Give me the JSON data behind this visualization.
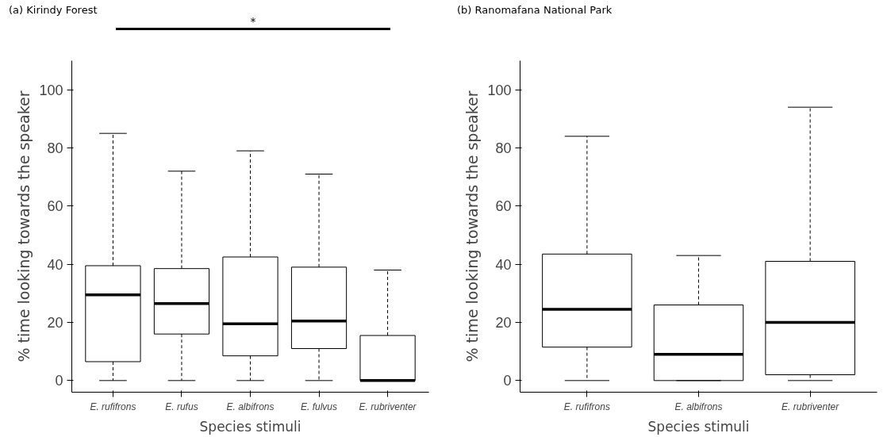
{
  "chart_data": [
    {
      "type": "box",
      "title": "(a) Kirindy Forest",
      "xlabel": "Species stimuli",
      "ylabel": "% time looking towards the speaker",
      "categories": [
        "E. rufifrons",
        "E. rufus",
        "E. albifrons",
        "E. fulvus",
        "E. rubriventer"
      ],
      "boxes": [
        {
          "low": 0,
          "q1": 6.5,
          "median": 29.5,
          "q3": 39.5,
          "high": 85
        },
        {
          "low": 0,
          "q1": 16,
          "median": 26.5,
          "q3": 38.5,
          "high": 72
        },
        {
          "low": 0,
          "q1": 8.5,
          "median": 19.5,
          "q3": 42.5,
          "high": 79
        },
        {
          "low": 0,
          "q1": 11,
          "median": 20.5,
          "q3": 39,
          "high": 71
        },
        {
          "low": 0,
          "q1": 0,
          "median": 0,
          "q3": 15.5,
          "high": 38
        }
      ],
      "ylim": [
        -4,
        110
      ],
      "yticks": [
        0,
        20,
        40,
        60,
        80,
        100
      ],
      "grid": false,
      "annotations": [
        "*"
      ]
    },
    {
      "type": "box",
      "title": "(b) Ranomafana National Park",
      "xlabel": "Species stimuli",
      "ylabel": "% time looking towards the speaker",
      "categories": [
        "E. rufifrons",
        "E. albifrons",
        "E. rubriventer"
      ],
      "boxes": [
        {
          "low": 0,
          "q1": 11.5,
          "median": 24.5,
          "q3": 43.5,
          "high": 84
        },
        {
          "low": 0,
          "q1": 0,
          "median": 9,
          "q3": 26,
          "high": 43
        },
        {
          "low": 0,
          "q1": 2,
          "median": 20,
          "q3": 41,
          "high": 94
        }
      ],
      "ylim": [
        -4,
        110
      ],
      "yticks": [
        0,
        20,
        40,
        60,
        80,
        100
      ],
      "grid": false
    }
  ]
}
